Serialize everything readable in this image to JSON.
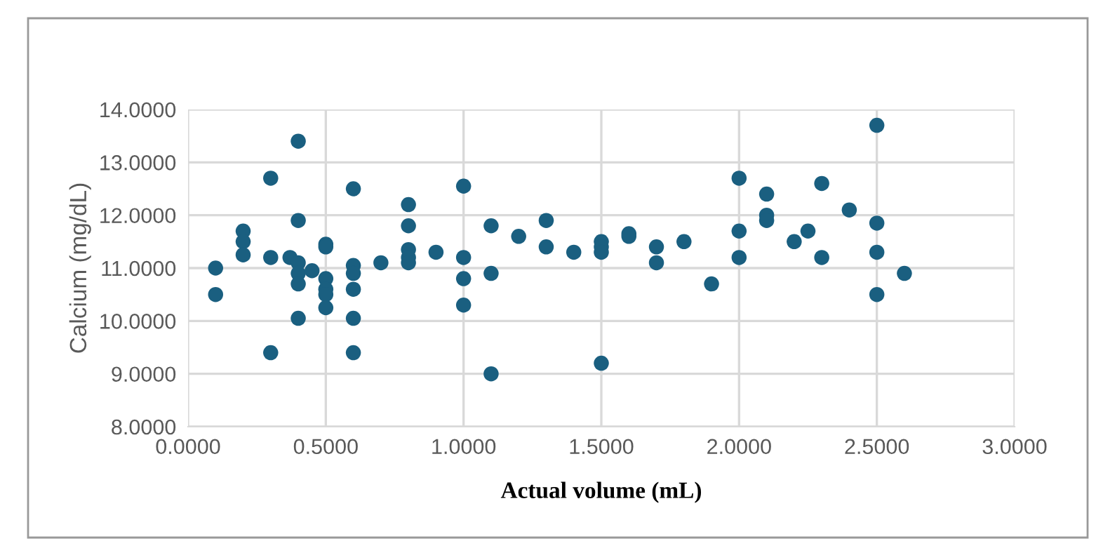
{
  "chart_data": {
    "type": "scatter",
    "xlabel": "Actual volume (mL)",
    "ylabel": "Calcium (mg/dL)",
    "x": [
      0.1,
      0.1,
      0.2,
      0.2,
      0.2,
      0.3,
      0.3,
      0.3,
      0.37,
      0.4,
      0.4,
      0.4,
      0.4,
      0.4,
      0.4,
      0.45,
      0.5,
      0.5,
      0.5,
      0.5,
      0.5,
      0.5,
      0.6,
      0.6,
      0.6,
      0.6,
      0.6,
      0.6,
      0.7,
      0.8,
      0.8,
      0.8,
      0.8,
      0.8,
      0.9,
      1.0,
      1.0,
      1.0,
      1.0,
      1.1,
      1.1,
      1.1,
      1.2,
      1.3,
      1.3,
      1.4,
      1.5,
      1.5,
      1.5,
      1.5,
      1.6,
      1.6,
      1.7,
      1.7,
      1.8,
      1.9,
      2.0,
      2.0,
      2.0,
      2.1,
      2.1,
      2.1,
      2.2,
      2.25,
      2.3,
      2.3,
      2.4,
      2.5,
      2.5,
      2.5,
      2.5,
      2.6
    ],
    "series": [
      {
        "color": "#1a5f80",
        "values": [
          11.0,
          10.5,
          11.7,
          11.5,
          11.25,
          12.7,
          11.2,
          9.4,
          11.2,
          13.4,
          11.9,
          11.1,
          10.9,
          10.7,
          10.05,
          10.95,
          11.45,
          11.4,
          10.8,
          10.6,
          10.5,
          10.25,
          12.5,
          11.05,
          10.9,
          10.6,
          10.05,
          9.4,
          11.1,
          12.2,
          11.8,
          11.35,
          11.2,
          11.1,
          11.3,
          12.55,
          11.2,
          10.8,
          10.3,
          11.8,
          10.9,
          9.0,
          11.6,
          11.9,
          11.4,
          11.3,
          11.5,
          11.4,
          11.3,
          9.2,
          11.65,
          11.6,
          11.4,
          11.1,
          11.5,
          10.7,
          12.7,
          11.7,
          11.2,
          12.4,
          12.0,
          11.9,
          11.5,
          11.7,
          12.6,
          11.2,
          12.1,
          13.7,
          11.85,
          11.3,
          10.5,
          10.9
        ]
      }
    ],
    "xlim": [
      0,
      3
    ],
    "ylim": [
      8,
      14
    ],
    "xticks": [
      {
        "value": 0,
        "label": "0.0000"
      },
      {
        "value": 0.5,
        "label": "0.5000"
      },
      {
        "value": 1,
        "label": "1.0000"
      },
      {
        "value": 1.5,
        "label": "1.5000"
      },
      {
        "value": 2,
        "label": "2.0000"
      },
      {
        "value": 2.5,
        "label": "2.5000"
      },
      {
        "value": 3,
        "label": "3.0000"
      }
    ],
    "yticks": [
      {
        "value": 8,
        "label": "8.0000"
      },
      {
        "value": 9,
        "label": "9.0000"
      },
      {
        "value": 10,
        "label": "10.0000"
      },
      {
        "value": 11,
        "label": "11.0000"
      },
      {
        "value": 12,
        "label": "12.0000"
      },
      {
        "value": 13,
        "label": "13.0000"
      },
      {
        "value": 14,
        "label": "14.0000"
      }
    ],
    "grid": true,
    "marker": "circle",
    "legend": false
  }
}
